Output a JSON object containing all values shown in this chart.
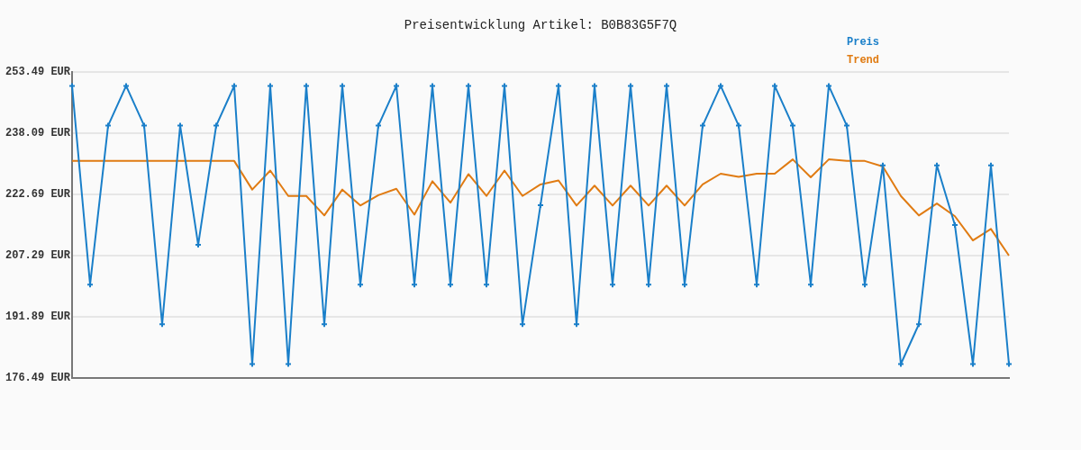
{
  "chart_data": {
    "type": "line",
    "title": "Preisentwicklung Artikel: B0B83G5F7Q",
    "categories": [
      null,
      null,
      null,
      null,
      null,
      null,
      null,
      null,
      null,
      null,
      null,
      null,
      null,
      null,
      null,
      null,
      null,
      null,
      null,
      null,
      null,
      null,
      null,
      null,
      null,
      null,
      null,
      null,
      null,
      null,
      null,
      null,
      null,
      null,
      null,
      null,
      null,
      null,
      null,
      null,
      null,
      null,
      null,
      null,
      null,
      null,
      null,
      null,
      null,
      null,
      null,
      null,
      null
    ],
    "series": [
      {
        "name": "Preis",
        "color": "#1a7fc9",
        "marker": "cross",
        "values": [
          250,
          200,
          240,
          250,
          240,
          190,
          240,
          210,
          240,
          250,
          180,
          250,
          180,
          250,
          190,
          250,
          200,
          240,
          250,
          200,
          250,
          200,
          250,
          200,
          250,
          190,
          220,
          250,
          190,
          250,
          200,
          250,
          200,
          250,
          200,
          240,
          250,
          240,
          200,
          250,
          240,
          200,
          250,
          240,
          200,
          230,
          180,
          190,
          230,
          215,
          180,
          230,
          180
        ]
      },
      {
        "name": "Trend",
        "color": "#e07b12",
        "marker": "none",
        "values": [
          231.1,
          231.1,
          231.1,
          231.1,
          231.1,
          231.1,
          231.1,
          231.1,
          231.1,
          231.1,
          223.9,
          228.7,
          222.3,
          222.3,
          217.4,
          223.9,
          219.9,
          222.5,
          224.1,
          217.6,
          226.0,
          220.6,
          227.8,
          222.3,
          228.7,
          222.3,
          225.2,
          226.2,
          219.9,
          224.9,
          219.9,
          224.9,
          219.9,
          224.9,
          219.9,
          225.2,
          227.9,
          227.1,
          227.9,
          227.9,
          231.5,
          227.0,
          231.5,
          231.1,
          231.1,
          229.7,
          222.3,
          217.4,
          220.4,
          217.2,
          211.1,
          214.0,
          207.3
        ]
      }
    ],
    "ylim": [
      176.49,
      253.49
    ],
    "yticks": [
      {
        "value": 176.49,
        "label": "176.49 EUR"
      },
      {
        "value": 191.89,
        "label": "191.89 EUR"
      },
      {
        "value": 207.29,
        "label": "207.29 EUR"
      },
      {
        "value": 222.69,
        "label": "222.69 EUR"
      },
      {
        "value": 238.09,
        "label": "238.09 EUR"
      },
      {
        "value": 253.49,
        "label": "253.49 EUR"
      }
    ],
    "grid": "y",
    "legend": "top right",
    "line_style": "solid",
    "tick_labels": "y"
  }
}
